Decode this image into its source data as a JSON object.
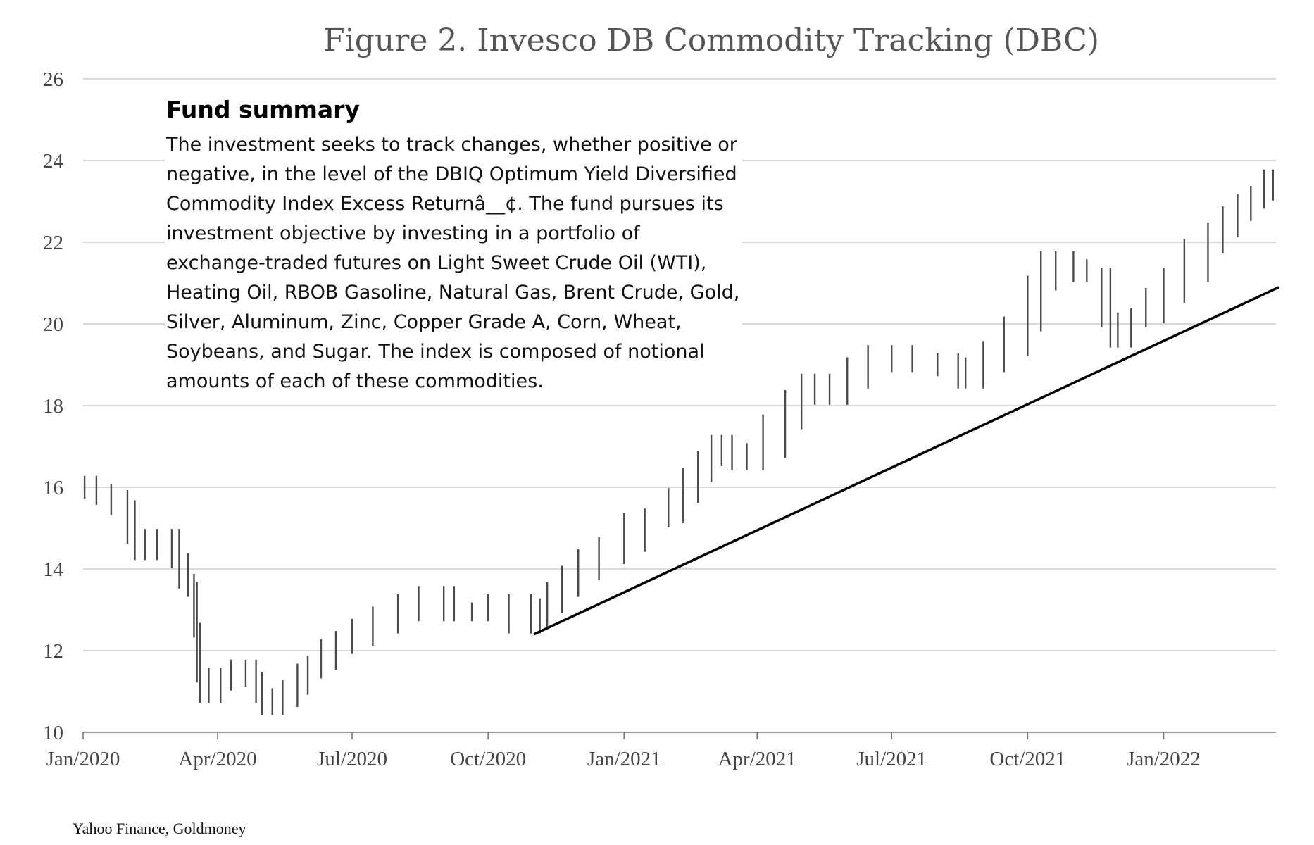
{
  "chart_data": {
    "type": "line",
    "title": "Figure 2. Invesco DB Commodity Tracking (DBC)",
    "xlabel": "",
    "ylabel": "",
    "ylim": [
      10,
      26
    ],
    "yticks": [
      10,
      12,
      14,
      16,
      18,
      20,
      22,
      24,
      26
    ],
    "xlim": [
      "2020-01-01",
      "2022-03-18"
    ],
    "xticks": [
      {
        "date": "2020-01-01",
        "label": "Jan/2020"
      },
      {
        "date": "2020-04-01",
        "label": "Apr/2020"
      },
      {
        "date": "2020-07-01",
        "label": "Jul/2020"
      },
      {
        "date": "2020-10-01",
        "label": "Oct/2020"
      },
      {
        "date": "2021-01-01",
        "label": "Jan/2021"
      },
      {
        "date": "2021-04-01",
        "label": "Apr/2021"
      },
      {
        "date": "2021-07-01",
        "label": "Jul/2021"
      },
      {
        "date": "2021-10-01",
        "label": "Oct/2021"
      },
      {
        "date": "2022-01-01",
        "label": "Jan/2022"
      }
    ],
    "grid": true,
    "series": [
      {
        "name": "",
        "color": "#4a4a4a",
        "points": [
          {
            "x": "2020-01-02",
            "y": 16.1
          },
          {
            "x": "2020-01-10",
            "y": 15.9
          },
          {
            "x": "2020-01-20",
            "y": 15.75
          },
          {
            "x": "2020-01-31",
            "y": 15.5
          },
          {
            "x": "2020-02-05",
            "y": 14.8
          },
          {
            "x": "2020-02-12",
            "y": 14.4
          },
          {
            "x": "2020-02-20",
            "y": 14.6
          },
          {
            "x": "2020-03-01",
            "y": 14.8
          },
          {
            "x": "2020-03-06",
            "y": 14.2
          },
          {
            "x": "2020-03-12",
            "y": 13.7
          },
          {
            "x": "2020-03-16",
            "y": 13.5
          },
          {
            "x": "2020-03-18",
            "y": 12.5
          },
          {
            "x": "2020-03-20",
            "y": 11.4
          },
          {
            "x": "2020-03-26",
            "y": 10.9
          },
          {
            "x": "2020-04-03",
            "y": 11.2
          },
          {
            "x": "2020-04-10",
            "y": 11.4
          },
          {
            "x": "2020-04-20",
            "y": 11.6
          },
          {
            "x": "2020-04-27",
            "y": 11.3
          },
          {
            "x": "2020-05-01",
            "y": 10.9
          },
          {
            "x": "2020-05-08",
            "y": 10.6
          },
          {
            "x": "2020-05-15",
            "y": 10.8
          },
          {
            "x": "2020-05-25",
            "y": 11.1
          },
          {
            "x": "2020-06-01",
            "y": 11.5
          },
          {
            "x": "2020-06-10",
            "y": 11.7
          },
          {
            "x": "2020-06-20",
            "y": 12.1
          },
          {
            "x": "2020-07-01",
            "y": 12.3
          },
          {
            "x": "2020-07-15",
            "y": 12.6
          },
          {
            "x": "2020-08-01",
            "y": 12.9
          },
          {
            "x": "2020-08-15",
            "y": 13.2
          },
          {
            "x": "2020-09-01",
            "y": 13.4
          },
          {
            "x": "2020-09-08",
            "y": 12.9
          },
          {
            "x": "2020-09-20",
            "y": 12.9
          },
          {
            "x": "2020-10-01",
            "y": 13.0
          },
          {
            "x": "2020-10-15",
            "y": 13.2
          },
          {
            "x": "2020-10-30",
            "y": 12.6
          },
          {
            "x": "2020-11-05",
            "y": 12.7
          },
          {
            "x": "2020-11-10",
            "y": 13.1
          },
          {
            "x": "2020-11-20",
            "y": 13.5
          },
          {
            "x": "2020-12-01",
            "y": 13.9
          },
          {
            "x": "2020-12-15",
            "y": 14.3
          },
          {
            "x": "2021-01-01",
            "y": 14.6
          },
          {
            "x": "2021-01-15",
            "y": 15.2
          },
          {
            "x": "2021-01-31",
            "y": 15.3
          },
          {
            "x": "2021-02-10",
            "y": 15.8
          },
          {
            "x": "2021-02-20",
            "y": 16.3
          },
          {
            "x": "2021-03-01",
            "y": 16.7
          },
          {
            "x": "2021-03-08",
            "y": 17.1
          },
          {
            "x": "2021-03-15",
            "y": 16.7
          },
          {
            "x": "2021-03-25",
            "y": 16.6
          },
          {
            "x": "2021-04-05",
            "y": 16.9
          },
          {
            "x": "2021-04-20",
            "y": 17.6
          },
          {
            "x": "2021-05-01",
            "y": 18.2
          },
          {
            "x": "2021-05-10",
            "y": 18.6
          },
          {
            "x": "2021-05-20",
            "y": 18.2
          },
          {
            "x": "2021-06-01",
            "y": 18.6
          },
          {
            "x": "2021-06-15",
            "y": 19.0
          },
          {
            "x": "2021-07-01",
            "y": 19.3
          },
          {
            "x": "2021-07-15",
            "y": 19.0
          },
          {
            "x": "2021-08-01",
            "y": 19.1
          },
          {
            "x": "2021-08-15",
            "y": 18.9
          },
          {
            "x": "2021-08-20",
            "y": 18.6
          },
          {
            "x": "2021-09-01",
            "y": 19.0
          },
          {
            "x": "2021-09-15",
            "y": 19.4
          },
          {
            "x": "2021-10-01",
            "y": 20.0
          },
          {
            "x": "2021-10-10",
            "y": 21.0
          },
          {
            "x": "2021-10-20",
            "y": 21.6
          },
          {
            "x": "2021-11-01",
            "y": 21.4
          },
          {
            "x": "2021-11-10",
            "y": 21.2
          },
          {
            "x": "2021-11-20",
            "y": 21.2
          },
          {
            "x": "2021-11-26",
            "y": 20.1
          },
          {
            "x": "2021-12-01",
            "y": 19.6
          },
          {
            "x": "2021-12-10",
            "y": 20.1
          },
          {
            "x": "2021-12-20",
            "y": 20.2
          },
          {
            "x": "2022-01-01",
            "y": 20.7
          },
          {
            "x": "2022-01-15",
            "y": 21.2
          },
          {
            "x": "2022-01-31",
            "y": 21.9
          },
          {
            "x": "2022-02-10",
            "y": 22.3
          },
          {
            "x": "2022-02-20",
            "y": 22.7
          },
          {
            "x": "2022-03-01",
            "y": 23.0
          },
          {
            "x": "2022-03-10",
            "y": 23.2
          },
          {
            "x": "2022-03-16",
            "y": 23.6
          }
        ]
      }
    ],
    "trendline": {
      "from": {
        "x": "2020-11-01",
        "y": 12.4
      },
      "to": {
        "x": "2022-03-20",
        "y": 20.9
      }
    },
    "source": "Yahoo Finance, Goldmoney"
  },
  "summary": {
    "heading": "Fund summary",
    "text": "The investment seeks to track changes, whether positive or negative, in the level of the DBIQ Optimum Yield Diversified Commodity Index Excess Returnâ__¢. The fund pursues its investment objective by investing in a portfolio of exchange-traded futures on Light Sweet Crude Oil (WTI), Heating Oil, RBOB Gasoline, Natural Gas, Brent Crude, Gold, Silver, Aluminum, Zinc, Copper Grade A, Corn, Wheat, Soybeans, and Sugar. The index is composed of notional amounts of each of these commodities."
  }
}
